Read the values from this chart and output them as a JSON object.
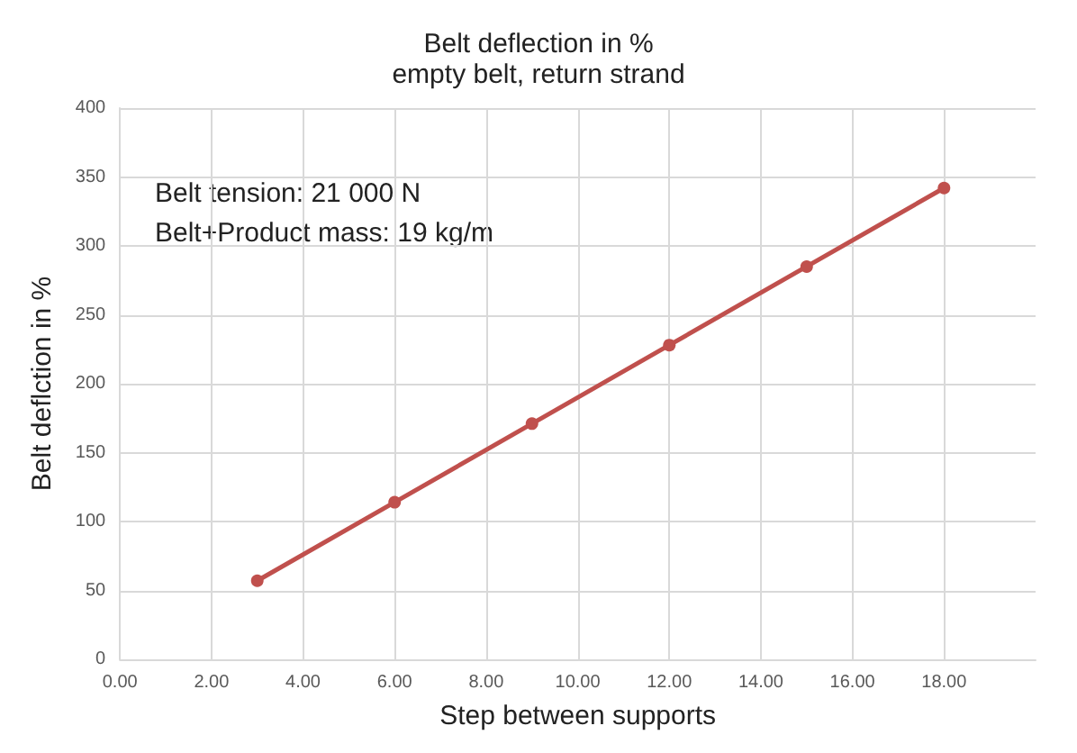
{
  "chart_data": {
    "type": "line",
    "title": "Belt deflection in %",
    "subtitle": "empty belt, return strand",
    "xlabel": "Step between supports",
    "ylabel": "Belt deflction in %",
    "x": [
      3,
      6,
      9,
      12,
      15,
      18
    ],
    "series": [
      {
        "color": "#c0504d",
        "values": [
          57,
          114,
          171,
          228,
          285,
          342
        ]
      }
    ],
    "xlim": [
      0,
      20
    ],
    "xticks": [
      {
        "value": 0,
        "label": "0.00"
      },
      {
        "value": 2,
        "label": "2.00"
      },
      {
        "value": 4,
        "label": "4.00"
      },
      {
        "value": 6,
        "label": "6.00"
      },
      {
        "value": 8,
        "label": "8.00"
      },
      {
        "value": 10,
        "label": "10.00"
      },
      {
        "value": 12,
        "label": "12.00"
      },
      {
        "value": 14,
        "label": "14.00"
      },
      {
        "value": 16,
        "label": "16.00"
      },
      {
        "value": 18,
        "label": "18.00"
      }
    ],
    "ylim": [
      0,
      400
    ],
    "yticks": [
      0,
      50,
      100,
      150,
      200,
      250,
      300,
      350,
      400
    ],
    "annotations": [
      "Belt tension: 21 000 N",
      "Belt+Product mass: 19 kg/m"
    ],
    "grid": true,
    "marker": "circle",
    "line_style": "solid"
  }
}
